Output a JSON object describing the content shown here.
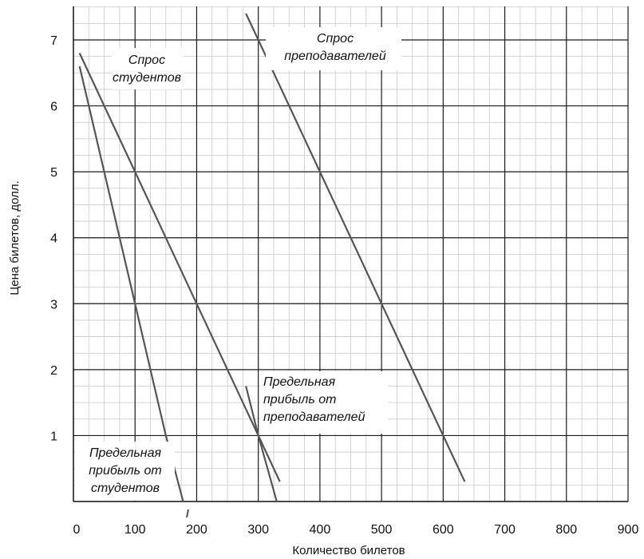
{
  "chart_data": {
    "type": "line",
    "xlabel": "Количество билетов",
    "ylabel": "Цена билетов, долл.",
    "xlim": [
      0,
      900
    ],
    "ylim": [
      0,
      7.5
    ],
    "x_ticks": [
      "0",
      "100",
      "200",
      "300",
      "400",
      "500",
      "600",
      "700",
      "800",
      "900"
    ],
    "y_ticks": [
      "1",
      "2",
      "3",
      "4",
      "5",
      "6",
      "7"
    ],
    "grid": true,
    "series": [
      {
        "name": "Спрос студентов",
        "label_lines": [
          "Спрос",
          "студентов"
        ],
        "color": "#555555",
        "points": [
          [
            10,
            6.8
          ],
          [
            100,
            5
          ],
          [
            200,
            3
          ],
          [
            300,
            1
          ],
          [
            335,
            0.3
          ]
        ]
      },
      {
        "name": "Спрос преподавателей",
        "label_lines": [
          "Спрос",
          "преподавателей"
        ],
        "color": "#555555",
        "points": [
          [
            280,
            7.4
          ],
          [
            300,
            7
          ],
          [
            400,
            5
          ],
          [
            500,
            3
          ],
          [
            600,
            1
          ],
          [
            635,
            0.3
          ]
        ]
      },
      {
        "name": "Предельная прибыль от студентов",
        "label_lines": [
          "Предельная",
          "прибыль от",
          "студентов"
        ],
        "color": "#555555",
        "points": [
          [
            10,
            6.6
          ],
          [
            50,
            5
          ],
          [
            100,
            3
          ],
          [
            150,
            1
          ],
          [
            178,
            0
          ]
        ]
      },
      {
        "name": "Предельная прибыль от преподавателей",
        "label_lines": [
          "Предельная",
          "прибыль от",
          "преподавателей"
        ],
        "color": "#555555",
        "points": [
          [
            280,
            1.75
          ],
          [
            300,
            1
          ],
          [
            330,
            0
          ]
        ]
      }
    ]
  }
}
